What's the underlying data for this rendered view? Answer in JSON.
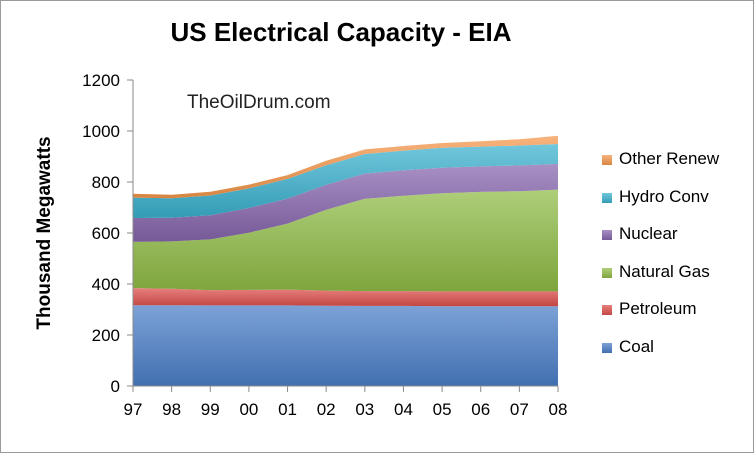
{
  "chart_data": {
    "type": "area",
    "stacked": true,
    "title": "US Electrical Capacity - EIA",
    "watermark": "TheOilDrum.com",
    "xlabel": "",
    "ylabel": "Thousand Megawatts",
    "ylim": [
      0,
      1200
    ],
    "yticks": [
      "0",
      "200",
      "400",
      "600",
      "800",
      "1000",
      "1200"
    ],
    "categories": [
      "97",
      "98",
      "99",
      "00",
      "01",
      "02",
      "03",
      "04",
      "05",
      "06",
      "07",
      "08"
    ],
    "legend_position": "right",
    "grid": false,
    "series": [
      {
        "name": "Coal",
        "color": "#4a7ec8",
        "values": [
          317,
          317,
          316,
          316,
          316,
          315,
          314,
          314,
          313,
          313,
          313,
          313
        ]
      },
      {
        "name": "Petroleum",
        "color": "#de4f4c",
        "values": [
          67,
          64,
          60,
          61,
          62,
          59,
          58,
          58,
          58,
          58,
          58,
          58
        ]
      },
      {
        "name": "Natural Gas",
        "color": "#8fbb45",
        "values": [
          181,
          186,
          199,
          224,
          259,
          317,
          362,
          374,
          385,
          390,
          393,
          399
        ]
      },
      {
        "name": "Nuclear",
        "color": "#8665ad",
        "values": [
          94,
          93,
          95,
          97,
          98,
          98,
          99,
          100,
          100,
          100,
          101,
          101
        ]
      },
      {
        "name": "Hydro Conv",
        "color": "#3bb1cf",
        "values": [
          80,
          76,
          77,
          77,
          77,
          77,
          77,
          77,
          78,
          78,
          78,
          78
        ]
      },
      {
        "name": "Other Renew",
        "color": "#f5974a",
        "values": [
          15,
          14,
          15,
          15,
          15,
          17,
          18,
          18,
          19,
          21,
          25,
          32
        ]
      }
    ]
  }
}
